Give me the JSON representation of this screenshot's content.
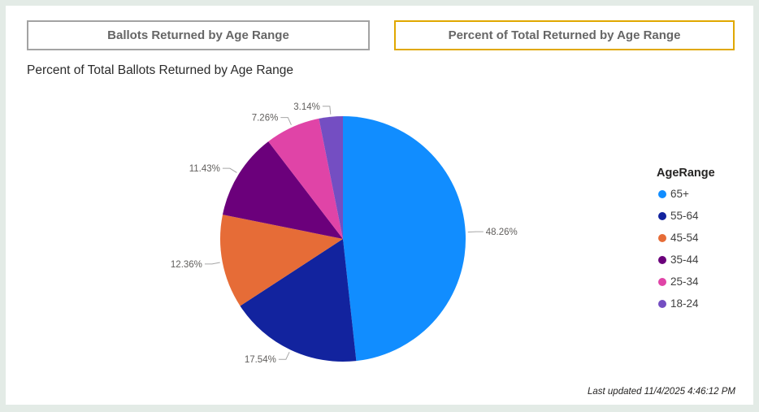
{
  "colors": {
    "page_background": "#E3EBE6",
    "card_background": "#FFFFFF",
    "button_border_default": "#A3A3A3",
    "button_border_selected": "#E0A800",
    "button_text": "#666666",
    "data_label_text": "#605E5C",
    "leader_line": "#A6A6A6"
  },
  "toolbar": {
    "buttons": [
      {
        "label": "Ballots Returned by Age Range",
        "selected": false
      },
      {
        "label": "Percent of Total Returned by Age Range",
        "selected": true
      }
    ]
  },
  "chart_data": {
    "type": "pie",
    "title": "Percent of Total Ballots Returned by Age Range",
    "legend_title": "AgeRange",
    "legend_position": "right",
    "direction": "clockwise",
    "start_angle_deg": 0,
    "categories": [
      "65+",
      "55-64",
      "45-54",
      "35-44",
      "25-34",
      "18-24"
    ],
    "values": [
      48.26,
      17.54,
      12.36,
      11.43,
      7.26,
      3.14
    ],
    "labels": [
      "48.26%",
      "17.54%",
      "12.36%",
      "11.43%",
      "7.26%",
      "3.14%"
    ],
    "colors": [
      "#118DFF",
      "#12239E",
      "#E66C37",
      "#6B007B",
      "#E044A7",
      "#744EC2"
    ]
  },
  "footer": {
    "last_updated": "Last updated 11/4/2025 4:46:12 PM"
  }
}
